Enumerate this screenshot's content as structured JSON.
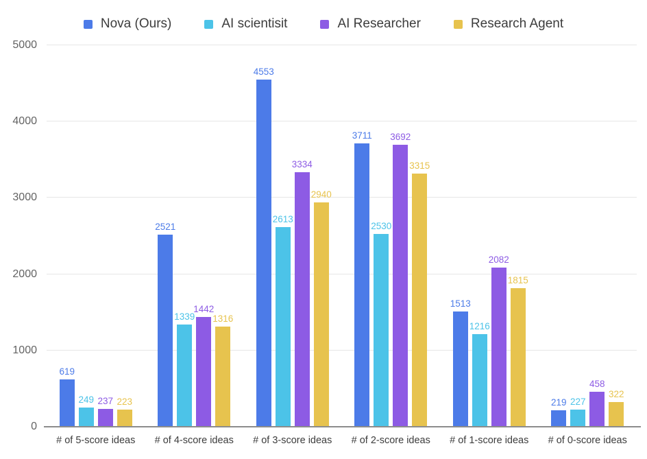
{
  "chart_data": {
    "type": "bar",
    "title": "",
    "categories": [
      "# of 5-score ideas",
      "# of 4-score ideas",
      "# of 3-score ideas",
      "# of 2-score ideas",
      "# of 1-score ideas",
      "# of 0-score ideas"
    ],
    "series": [
      {
        "name": "Nova (Ours)",
        "color": "#4C7BE8",
        "values": [
          619,
          2521,
          4553,
          3711,
          1513,
          219
        ]
      },
      {
        "name": "AI scientisit",
        "color": "#4CC3E8",
        "values": [
          249,
          1339,
          2613,
          2530,
          1216,
          227
        ]
      },
      {
        "name": "AI Researcher",
        "color": "#8D5BE4",
        "values": [
          237,
          1442,
          3334,
          3692,
          2082,
          458
        ]
      },
      {
        "name": "Research Agent",
        "color": "#E7C34E",
        "values": [
          223,
          1316,
          2940,
          3315,
          1815,
          322
        ]
      }
    ],
    "ylim": [
      0,
      5000
    ],
    "yticks": [
      0,
      1000,
      2000,
      3000,
      4000,
      5000
    ],
    "grid": true,
    "legend_position": "top",
    "value_labels": true
  },
  "style": {
    "background": "#FFFFFF",
    "grid_color": "#E6E6E6",
    "axis_color": "#8C8C8C",
    "tick_label_color": "#636363",
    "category_label_color": "#3C3C3C",
    "legend_text_color": "#3C3C3C"
  }
}
